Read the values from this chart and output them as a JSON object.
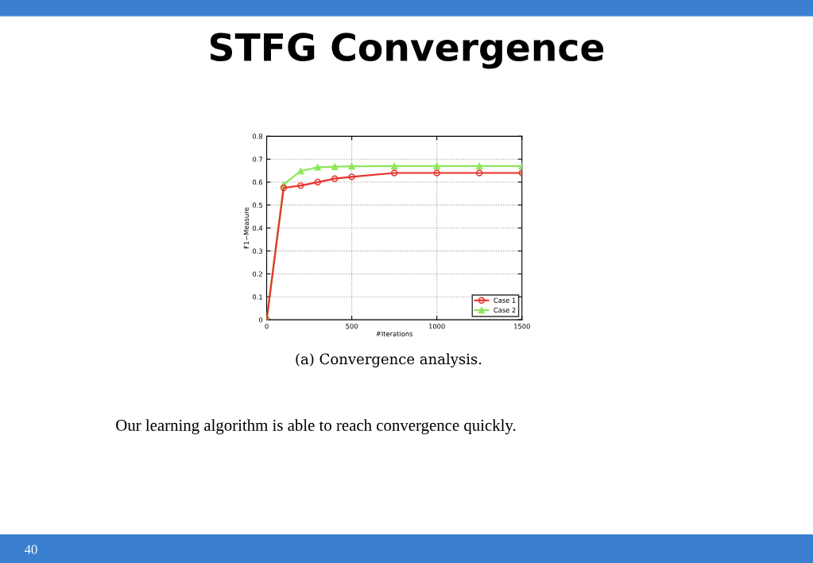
{
  "chart_data": {
    "type": "line",
    "title": "STFG Convergence",
    "xlabel": "#Iterations",
    "ylabel": "F1−Measure",
    "x": [
      0,
      100,
      200,
      300,
      400,
      500,
      750,
      1000,
      1250,
      1500
    ],
    "series": [
      {
        "name": "Case 1",
        "color": "#e8322a",
        "marker": "circle",
        "values": [
          0,
          0.575,
          0.585,
          0.6,
          0.615,
          0.623,
          0.64,
          0.64,
          0.64,
          0.64
        ]
      },
      {
        "name": "Case 2",
        "color": "#8ee65a",
        "marker": "triangle",
        "values": [
          0,
          0.59,
          0.648,
          0.665,
          0.667,
          0.669,
          0.67,
          0.67,
          0.67,
          0.67
        ]
      }
    ],
    "xlim": [
      0,
      1500
    ],
    "xticks": [
      0,
      500,
      1000,
      1500
    ],
    "ylim": [
      0,
      0.8
    ],
    "yticks": [
      0,
      0.1,
      0.2,
      0.3,
      0.4,
      0.5,
      0.6,
      0.7,
      0.8
    ],
    "grid": true,
    "legend": "bottom right",
    "line_style": "solid",
    "annotations": [
      "(a) Convergence analysis.",
      "Our learning algorithm is able to reach convergence quickly.",
      "40"
    ]
  }
}
